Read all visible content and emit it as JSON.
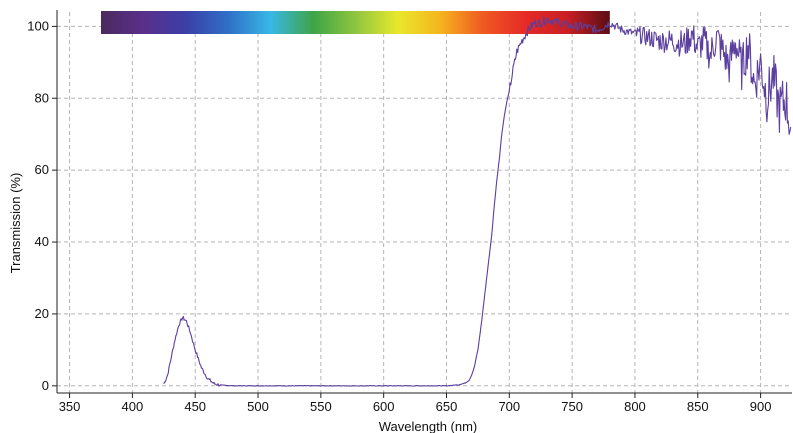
{
  "chart_data": {
    "type": "line",
    "title": "",
    "xlabel": "Wavelength (nm)",
    "ylabel": "Transmission (%)",
    "xlim": [
      340,
      925
    ],
    "ylim": [
      -2,
      104
    ],
    "x_ticks": [
      350,
      400,
      450,
      500,
      550,
      600,
      650,
      700,
      750,
      800,
      850,
      900
    ],
    "y_ticks": [
      0,
      20,
      40,
      60,
      80,
      100
    ],
    "grid": true,
    "grid_style": "dashed",
    "spectrum_band": {
      "x_range": [
        375,
        780
      ],
      "colors": [
        "#4b2a5e",
        "#5a2f8a",
        "#3b3fa6",
        "#2f6fc7",
        "#38b8e6",
        "#3ea447",
        "#8ec53f",
        "#e8e82c",
        "#f5b51d",
        "#ef5a22",
        "#e62a27",
        "#c81f24",
        "#5a0e14"
      ]
    },
    "series": [
      {
        "color": "#5b3f9e",
        "x": [
          425,
          428,
          431,
          434,
          437,
          440,
          443,
          446,
          450,
          455,
          460,
          465,
          470,
          480,
          500,
          550,
          600,
          650,
          660,
          665,
          668,
          670,
          672,
          675,
          678,
          680,
          683,
          686,
          688,
          690,
          692,
          694,
          696,
          698,
          700,
          703,
          706,
          710,
          715,
          720,
          725,
          730,
          740,
          750,
          760,
          770,
          780,
          790,
          800,
          810,
          820,
          830,
          840,
          845,
          850,
          855,
          860,
          865,
          870,
          875,
          880,
          885,
          890,
          895,
          900,
          905,
          910,
          915,
          920,
          924
        ],
        "y": [
          0.5,
          3,
          8,
          13,
          17,
          19,
          18,
          15,
          10,
          5,
          2,
          0.6,
          0.2,
          0,
          0,
          0,
          0,
          0,
          0.3,
          0.8,
          1.5,
          3,
          5,
          10,
          18,
          24,
          33,
          42,
          50,
          57,
          63,
          70,
          75,
          79,
          82,
          88,
          93,
          96,
          99,
          101,
          101,
          102,
          101,
          100,
          100,
          99,
          101,
          99,
          98,
          97,
          96,
          96,
          95,
          98,
          94,
          96,
          92,
          97,
          93,
          89,
          96,
          88,
          95,
          84,
          90,
          80,
          86,
          77,
          80,
          72
        ]
      }
    ]
  }
}
